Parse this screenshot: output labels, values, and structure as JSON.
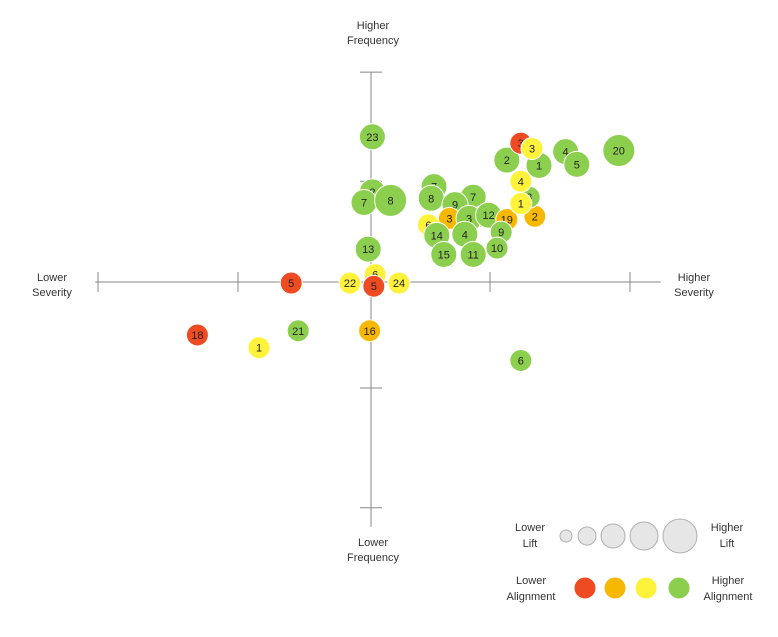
{
  "chart_data": {
    "type": "bubble-quadrant",
    "axis_labels": {
      "top": [
        "Higher",
        "Frequency"
      ],
      "bottom": [
        "Lower",
        "Frequency"
      ],
      "left": [
        "Lower",
        "Severity"
      ],
      "right": [
        "Higher",
        "Severity"
      ]
    },
    "legend": {
      "lift": {
        "low": [
          "Lower",
          "Lift"
        ],
        "high": [
          "Higher",
          "Lift"
        ]
      },
      "alignment": {
        "low": [
          "Lower",
          "Alignment"
        ],
        "high": [
          "Higher",
          "Alignment"
        ],
        "levels": [
          "red",
          "orange",
          "yellow",
          "green"
        ]
      }
    },
    "colors": {
      "red": "#ee4b22",
      "orange": "#f6b800",
      "yellow": "#fff23a",
      "green": "#8ccf4e",
      "axis": "#888888",
      "legend_lift": "#e6e6e6"
    },
    "xlim": [
      -2.0,
      2.0
    ],
    "ylim": [
      -2.0,
      1.8
    ],
    "points": [
      {
        "label": "23",
        "x": 0.01,
        "y": 1.37,
        "size": 2,
        "alignment": "green"
      },
      {
        "label": "2",
        "x": 0.01,
        "y": 0.85,
        "size": 2,
        "alignment": "green"
      },
      {
        "label": "7",
        "x": -0.05,
        "y": 0.75,
        "size": 2,
        "alignment": "green"
      },
      {
        "label": "8",
        "x": 0.14,
        "y": 0.77,
        "size": 3,
        "alignment": "green"
      },
      {
        "label": "7",
        "x": 0.45,
        "y": 0.9,
        "size": 2,
        "alignment": "green"
      },
      {
        "label": "8",
        "x": 0.43,
        "y": 0.79,
        "size": 2,
        "alignment": "green"
      },
      {
        "label": "7",
        "x": 0.73,
        "y": 0.8,
        "size": 2,
        "alignment": "green"
      },
      {
        "label": "9",
        "x": 0.6,
        "y": 0.73,
        "size": 2,
        "alignment": "green"
      },
      {
        "label": "9",
        "x": 0.8,
        "y": 0.62,
        "size": 1,
        "alignment": "green"
      },
      {
        "label": "3",
        "x": 0.56,
        "y": 0.6,
        "size": 1,
        "alignment": "orange"
      },
      {
        "label": "6",
        "x": 0.41,
        "y": 0.54,
        "size": 1,
        "alignment": "yellow"
      },
      {
        "label": "3",
        "x": 0.7,
        "y": 0.6,
        "size": 2,
        "alignment": "green"
      },
      {
        "label": "12",
        "x": 0.84,
        "y": 0.63,
        "size": 2,
        "alignment": "green"
      },
      {
        "label": "19",
        "x": 0.97,
        "y": 0.59,
        "size": 1,
        "alignment": "orange"
      },
      {
        "label": "2",
        "x": 1.17,
        "y": 0.62,
        "size": 1,
        "alignment": "orange"
      },
      {
        "label": "14",
        "x": 0.47,
        "y": 0.44,
        "size": 2,
        "alignment": "green"
      },
      {
        "label": "4",
        "x": 0.67,
        "y": 0.45,
        "size": 2,
        "alignment": "green"
      },
      {
        "label": "9",
        "x": 0.93,
        "y": 0.47,
        "size": 1,
        "alignment": "green"
      },
      {
        "label": "13",
        "x": -0.02,
        "y": 0.31,
        "size": 2,
        "alignment": "green"
      },
      {
        "label": "10",
        "x": 0.9,
        "y": 0.32,
        "size": 1,
        "alignment": "green"
      },
      {
        "label": "15",
        "x": 0.52,
        "y": 0.26,
        "size": 2,
        "alignment": "green"
      },
      {
        "label": "11",
        "x": 0.73,
        "y": 0.26,
        "size": 2,
        "alignment": "green"
      },
      {
        "label": "3",
        "x": 1.13,
        "y": 0.8,
        "size": 1,
        "alignment": "green"
      },
      {
        "label": "1",
        "x": 1.07,
        "y": 0.74,
        "size": 1,
        "alignment": "yellow"
      },
      {
        "label": "4",
        "x": 1.07,
        "y": 0.95,
        "size": 1,
        "alignment": "yellow"
      },
      {
        "label": "2",
        "x": 0.97,
        "y": 1.15,
        "size": 2,
        "alignment": "green"
      },
      {
        "label": "1",
        "x": 1.2,
        "y": 1.1,
        "size": 2,
        "alignment": "green"
      },
      {
        "label": "4",
        "x": 1.39,
        "y": 1.23,
        "size": 2,
        "alignment": "green"
      },
      {
        "label": "5",
        "x": 1.47,
        "y": 1.11,
        "size": 2,
        "alignment": "green"
      },
      {
        "label": "3",
        "x": 1.07,
        "y": 1.31,
        "size": 1,
        "alignment": "red"
      },
      {
        "label": "3",
        "x": 1.15,
        "y": 1.26,
        "size": 1,
        "alignment": "yellow"
      },
      {
        "label": "20",
        "x": 1.77,
        "y": 1.24,
        "size": 3,
        "alignment": "green"
      },
      {
        "label": "6",
        "x": 0.03,
        "y": 0.07,
        "size": 1,
        "alignment": "yellow"
      },
      {
        "label": "5",
        "x": -0.57,
        "y": -0.01,
        "size": 1,
        "alignment": "red"
      },
      {
        "label": "22",
        "x": -0.15,
        "y": -0.01,
        "size": 1,
        "alignment": "yellow"
      },
      {
        "label": "24",
        "x": 0.2,
        "y": -0.01,
        "size": 1,
        "alignment": "yellow"
      },
      {
        "label": "5",
        "x": 0.02,
        "y": -0.04,
        "size": 1,
        "alignment": "red"
      },
      {
        "label": "16",
        "x": -0.01,
        "y": -0.46,
        "size": 1,
        "alignment": "orange"
      },
      {
        "label": "21",
        "x": -0.52,
        "y": -0.46,
        "size": 1,
        "alignment": "green"
      },
      {
        "label": "18",
        "x": -1.24,
        "y": -0.5,
        "size": 1,
        "alignment": "red"
      },
      {
        "label": "1",
        "x": -0.8,
        "y": -0.62,
        "size": 1,
        "alignment": "yellow"
      },
      {
        "label": "6",
        "x": 1.07,
        "y": -0.74,
        "size": 1,
        "alignment": "green"
      }
    ]
  }
}
